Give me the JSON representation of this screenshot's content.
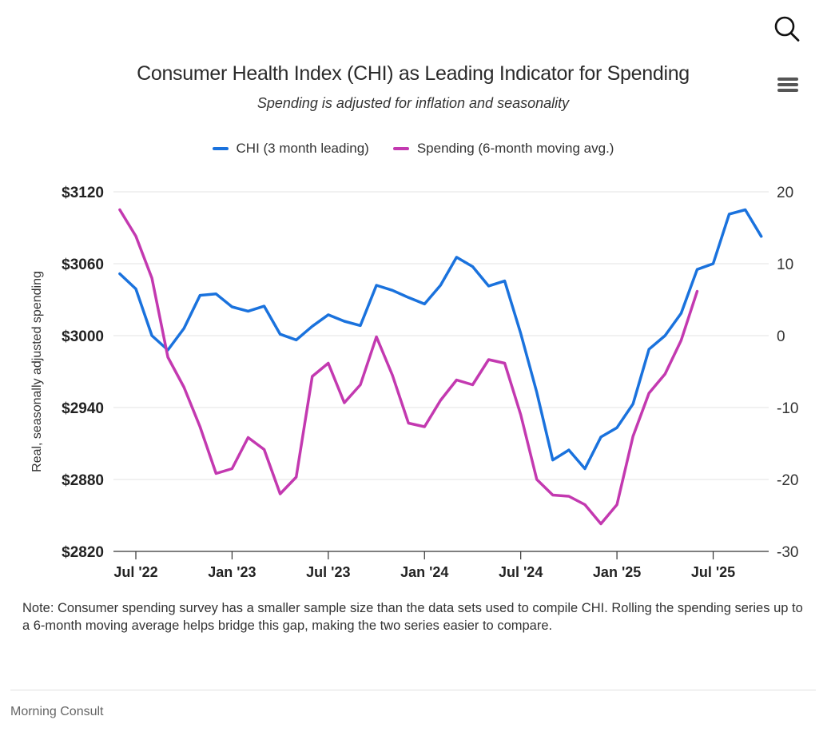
{
  "header": {
    "search_icon": "search-icon",
    "menu_icon": "hamburger-menu-icon"
  },
  "chart_data": {
    "type": "line",
    "title": "Consumer Health Index (CHI) as Leading Indicator for Spending",
    "subtitle": "Spending is adjusted for inflation and seasonality",
    "ylabel": "Real, seasonally adjusted spending",
    "x_ticks": [
      "Jul '22",
      "Jan '23",
      "Jul '23",
      "Jan '24",
      "Jul '24",
      "Jan '25",
      "Jul '25"
    ],
    "y_left": {
      "min": 2820,
      "max": 3120,
      "ticks": [
        "$3120",
        "$3060",
        "$3000",
        "$2940",
        "$2880",
        "$2820"
      ]
    },
    "y_right": {
      "min": -30,
      "max": 20,
      "ticks": [
        "20",
        "10",
        "0",
        "-10",
        "-20",
        "-30"
      ]
    },
    "grid": true,
    "legend_position": "top-center",
    "x_start": "2022-06",
    "series": [
      {
        "name": "CHI (3 month leading)",
        "axis": "right",
        "color": "#1a72dd",
        "values": [
          8.6,
          6.5,
          0,
          -2,
          1,
          5.6,
          5.8,
          4,
          3.4,
          4.1,
          0.2,
          -0.6,
          1.3,
          2.9,
          2,
          1.4,
          7,
          6.3,
          5.3,
          4.4,
          7,
          10.9,
          9.6,
          6.9,
          7.6,
          0.3,
          -7.9,
          -17.3,
          -15.9,
          -18.5,
          -14.1,
          -12.8,
          -9.5,
          -1.9,
          0,
          3.1,
          9.2,
          10,
          16.9,
          17.5,
          13.8
        ]
      },
      {
        "name": "Spending (6-month moving avg.)",
        "axis": "left",
        "color": "#c339b0",
        "values": [
          3105,
          3083,
          3048,
          2982,
          2957,
          2924,
          2885,
          2889,
          2915,
          2905,
          2868,
          2882,
          2966,
          2977,
          2944,
          2959,
          2999,
          2967,
          2927,
          2924,
          2946,
          2963,
          2959,
          2980,
          2977,
          2934,
          2880,
          2867,
          2866,
          2859,
          2843,
          2859,
          2916,
          2952,
          2968,
          2996,
          3037
        ]
      }
    ]
  },
  "note": "Note: Consumer spending survey has a smaller sample size than the data sets used to compile CHI. Rolling the spending series up to a 6-month moving average helps bridge this gap, making the two series easier to compare.",
  "credit": "Morning Consult"
}
